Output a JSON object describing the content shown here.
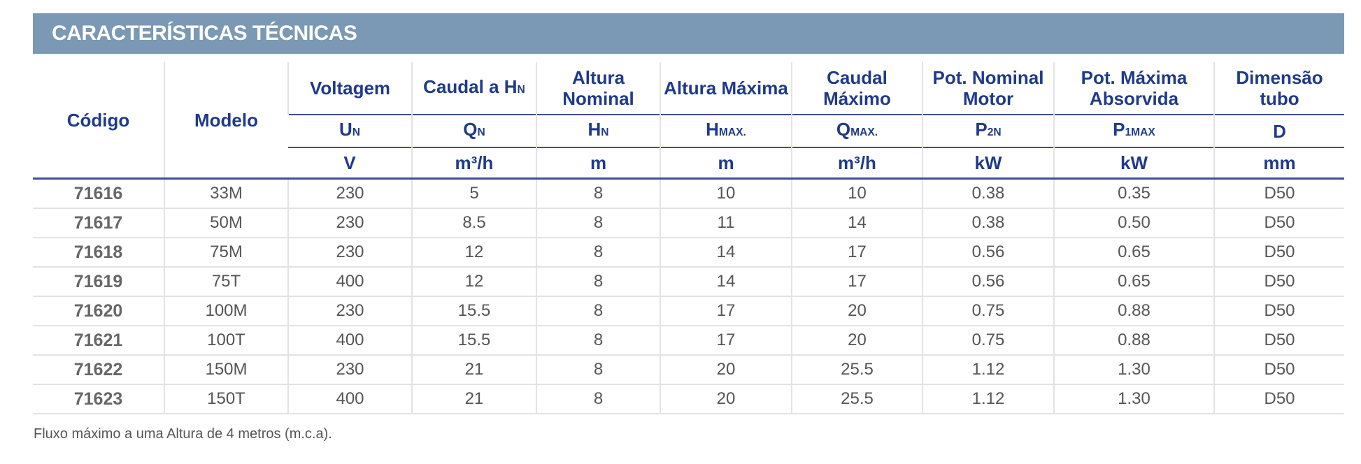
{
  "header": {
    "title": "CARACTERÍSTICAS TÉCNICAS"
  },
  "table": {
    "columns": [
      {
        "label": "Código"
      },
      {
        "label": "Modelo"
      },
      {
        "label": "Voltagem",
        "symbol": "U",
        "symbol_sub": "N",
        "unit": "V"
      },
      {
        "label": "Caudal a H",
        "label_sub": "N",
        "symbol": "Q",
        "symbol_sub": "N",
        "unit": "m³/h"
      },
      {
        "label": "Altura Nominal",
        "symbol": "H",
        "symbol_sub": "N",
        "unit": "m"
      },
      {
        "label": "Altura Máxima",
        "symbol": "H",
        "symbol_sub": "MAX.",
        "unit": "m"
      },
      {
        "label": "Caudal Máximo",
        "symbol": "Q",
        "symbol_sub": "MAX.",
        "unit": "m³/h"
      },
      {
        "label": "Pot. Nominal Motor",
        "symbol": "P",
        "symbol_sub": "2N",
        "unit": "kW"
      },
      {
        "label": "Pot. Máxima Absorvida",
        "symbol": "P",
        "symbol_sub": "1MAX",
        "unit": "kW"
      },
      {
        "label": "Dimensão tubo",
        "symbol": "D",
        "unit": "mm"
      }
    ],
    "rows": [
      [
        "71616",
        "33M",
        "230",
        "5",
        "8",
        "10",
        "10",
        "0.38",
        "0.35",
        "D50"
      ],
      [
        "71617",
        "50M",
        "230",
        "8.5",
        "8",
        "11",
        "14",
        "0.38",
        "0.50",
        "D50"
      ],
      [
        "71618",
        "75M",
        "230",
        "12",
        "8",
        "14",
        "17",
        "0.56",
        "0.65",
        "D50"
      ],
      [
        "71619",
        "75T",
        "400",
        "12",
        "8",
        "14",
        "17",
        "0.56",
        "0.65",
        "D50"
      ],
      [
        "71620",
        "100M",
        "230",
        "15.5",
        "8",
        "17",
        "20",
        "0.75",
        "0.88",
        "D50"
      ],
      [
        "71621",
        "100T",
        "400",
        "15.5",
        "8",
        "17",
        "20",
        "0.75",
        "0.88",
        "D50"
      ],
      [
        "71622",
        "150M",
        "230",
        "21",
        "8",
        "20",
        "25.5",
        "1.12",
        "1.30",
        "D50"
      ],
      [
        "71623",
        "150T",
        "400",
        "21",
        "8",
        "20",
        "25.5",
        "1.12",
        "1.30",
        "D50"
      ]
    ]
  },
  "footnote": "Fluxo máximo a uma Altura de 4 metros (m.c.a)."
}
